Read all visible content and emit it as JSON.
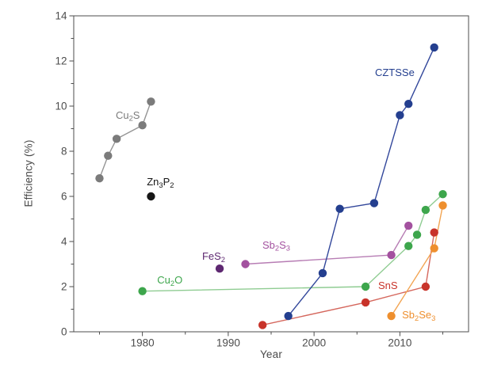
{
  "chart_data": {
    "type": "line",
    "title": "",
    "xlabel": "Year",
    "ylabel": "Efficiency (%)",
    "xlim": [
      1972,
      2018
    ],
    "ylim": [
      0,
      14
    ],
    "x_major_ticks": [
      1980,
      1990,
      2000,
      2010
    ],
    "x_minor_ticks": [
      1975,
      1985,
      1995,
      2005,
      2015
    ],
    "y_major_ticks": [
      0,
      2,
      4,
      6,
      8,
      10,
      12,
      14
    ],
    "y_minor_ticks": [
      1,
      3,
      5,
      7,
      9,
      11,
      13
    ],
    "grid": false,
    "legend": "inline-annotations",
    "frame_color": "#4d4d4d",
    "tick_label_color": "#4d4d4d",
    "background_color": "#ffffff",
    "series": [
      {
        "name": "Cu2S",
        "label": "Cu_2S",
        "color": "#7b7b7b",
        "line_color": "#949494",
        "points": [
          [
            1975,
            6.8
          ],
          [
            1976,
            7.8
          ],
          [
            1977,
            8.55
          ],
          [
            1980,
            9.15
          ],
          [
            1981,
            10.2
          ]
        ],
        "label_pos": [
          1978.3,
          9.6
        ]
      },
      {
        "name": "Zn3P2",
        "label": "Zn_3P_2",
        "color": "#161616",
        "line_color": "#161616",
        "points": [
          [
            1981,
            6.0
          ]
        ],
        "label_pos": [
          1982.1,
          6.65
        ]
      },
      {
        "name": "Cu2O",
        "label": "Cu_2O",
        "color": "#3da64c",
        "line_color": "#8fcc92",
        "points": [
          [
            1980,
            1.8
          ],
          [
            2006,
            2.0
          ],
          [
            2011,
            3.8
          ],
          [
            2012,
            4.3
          ],
          [
            2013,
            5.4
          ],
          [
            2015,
            6.1
          ]
        ],
        "label_pos": [
          1983.2,
          2.3
        ]
      },
      {
        "name": "FeS2",
        "label": "FeS_2",
        "color": "#5e2871",
        "line_color": "#5e2871",
        "points": [
          [
            1989,
            2.8
          ]
        ],
        "label_pos": [
          1988.3,
          3.35
        ]
      },
      {
        "name": "Sb2S3",
        "label": "Sb_2S_3",
        "color": "#a3519f",
        "line_color": "#b77db4",
        "points": [
          [
            1992,
            3.0
          ],
          [
            2009,
            3.4
          ],
          [
            2011,
            4.7
          ]
        ],
        "label_pos": [
          1995.6,
          3.85
        ]
      },
      {
        "name": "CZTSSe",
        "label": "CZTSSe",
        "color": "#243f8f",
        "line_color": "#32479b",
        "points": [
          [
            1997,
            0.7
          ],
          [
            2001,
            2.6
          ],
          [
            2003,
            5.45
          ],
          [
            2007,
            5.7
          ],
          [
            2010,
            9.6
          ],
          [
            2011,
            10.1
          ],
          [
            2014,
            12.6
          ]
        ],
        "label_pos": [
          2009.4,
          11.5
        ]
      },
      {
        "name": "SnS",
        "label": "SnS",
        "color": "#c8332a",
        "line_color": "#d5675d",
        "points": [
          [
            1994,
            0.3
          ],
          [
            2006,
            1.3
          ],
          [
            2013,
            2.0
          ],
          [
            2014,
            4.4
          ]
        ],
        "label_pos": [
          2008.6,
          2.05
        ]
      },
      {
        "name": "Sb2Se3",
        "label": "Sb_2Se_3",
        "color": "#ee8f2e",
        "line_color": "#f2a452",
        "points": [
          [
            2009,
            0.7
          ],
          [
            2014,
            3.7
          ],
          [
            2015,
            5.6
          ]
        ],
        "label_pos": [
          2012.2,
          0.75
        ]
      }
    ]
  }
}
